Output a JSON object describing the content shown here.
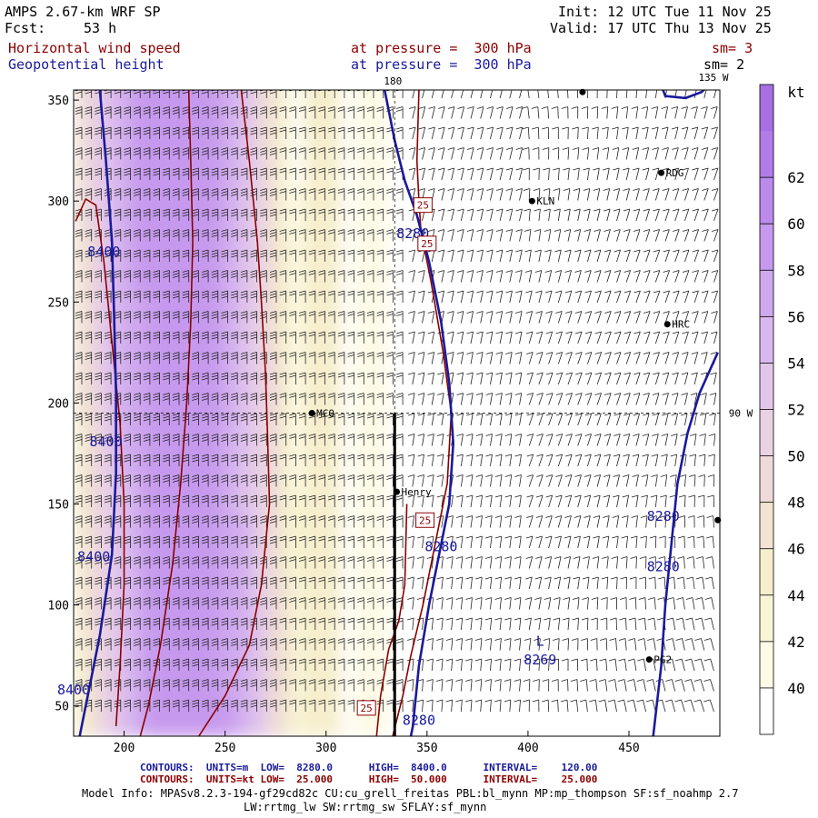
{
  "header": {
    "model": "AMPS 2.67-km WRF SP",
    "fcst_label": "Fcst:",
    "fcst_value": "53 h",
    "init": "Init: 12 UTC Tue 11 Nov 25",
    "valid": "Valid: 17 UTC Thu 13 Nov 25",
    "field1": "Horizontal wind speed",
    "field2": "Geopotential height",
    "level1": "at pressure =  300 hPa",
    "level2": "at pressure =  300 hPa",
    "sm1": "sm= 3",
    "sm2": "sm= 2"
  },
  "colors": {
    "wind_contour": "#8b0000",
    "height_contour": "#1a1a9c",
    "barb": "#222222"
  },
  "chart_data": {
    "type": "contour-map",
    "title": "Horizontal wind speed / Geopotential height at 300 hPa",
    "x_range": [
      175,
      495
    ],
    "y_range": [
      35,
      355
    ],
    "x_ticks": [
      200,
      250,
      300,
      350,
      400,
      450
    ],
    "y_ticks": [
      50,
      100,
      150,
      200,
      250,
      300,
      350
    ],
    "meridian_labels": [
      "180",
      "135 W",
      "90 W"
    ],
    "colorbar": {
      "unit": "kt",
      "ticks": [
        40,
        42,
        44,
        46,
        48,
        50,
        52,
        54,
        56,
        58,
        60,
        62
      ],
      "bands": [
        {
          "lo": 38,
          "hi": 40,
          "color": "#ffffff"
        },
        {
          "lo": 40,
          "hi": 42,
          "color": "#fdfbe6"
        },
        {
          "lo": 42,
          "hi": 44,
          "color": "#faf5d6"
        },
        {
          "lo": 44,
          "hi": 46,
          "color": "#f6eecc"
        },
        {
          "lo": 46,
          "hi": 48,
          "color": "#f2e3d2"
        },
        {
          "lo": 48,
          "hi": 50,
          "color": "#eedad8"
        },
        {
          "lo": 50,
          "hi": 52,
          "color": "#e9d2e3"
        },
        {
          "lo": 52,
          "hi": 54,
          "color": "#e2c6ea"
        },
        {
          "lo": 54,
          "hi": 56,
          "color": "#d9b8ee"
        },
        {
          "lo": 56,
          "hi": 58,
          "color": "#cfa9ef"
        },
        {
          "lo": 58,
          "hi": 60,
          "color": "#c699ee"
        },
        {
          "lo": 60,
          "hi": 62,
          "color": "#bc8aec"
        },
        {
          "lo": 62,
          "hi": 64,
          "color": "#b27ce8"
        },
        {
          "lo": 64,
          "hi": 66,
          "color": "#a86fe2"
        }
      ]
    },
    "stations": [
      {
        "name": "KLN",
        "x": 402,
        "y": 300
      },
      {
        "name": "RDG",
        "x": 466,
        "y": 314
      },
      {
        "name": "HRC",
        "x": 469,
        "y": 239
      },
      {
        "name": "MCO",
        "x": 293,
        "y": 195
      },
      {
        "name": "Henry",
        "x": 335,
        "y": 156
      },
      {
        "name": "PG2",
        "x": 460,
        "y": 73
      },
      {
        "name": "",
        "x": 494,
        "y": 142
      },
      {
        "name": "",
        "x": 427,
        "y": 354
      }
    ],
    "height_labels": [
      {
        "text": "8400",
        "x": 190,
        "y": 274
      },
      {
        "text": "8400",
        "x": 191,
        "y": 180
      },
      {
        "text": "8400",
        "x": 185,
        "y": 123
      },
      {
        "text": "8400",
        "x": 175,
        "y": 57
      },
      {
        "text": "8280",
        "x": 343,
        "y": 283
      },
      {
        "text": "8280",
        "x": 357,
        "y": 128
      },
      {
        "text": "8280",
        "x": 346,
        "y": 42
      },
      {
        "text": "8280",
        "x": 467,
        "y": 143
      },
      {
        "text": "8280",
        "x": 467,
        "y": 118
      },
      {
        "text": "8269",
        "x": 406,
        "y": 72
      }
    ],
    "low_center": {
      "text": "L",
      "x": 406,
      "y": 82
    },
    "wind_labels": [
      {
        "text": "25",
        "x": 348,
        "y": 298
      },
      {
        "text": "25",
        "x": 350,
        "y": 279
      },
      {
        "text": "25",
        "x": 349,
        "y": 142
      },
      {
        "text": "25",
        "x": 320,
        "y": 49
      }
    ]
  },
  "footer": {
    "line1_label": "CONTOURS:",
    "line1_units": "UNITS=m",
    "line1_low": "LOW=  8280.0",
    "line1_high": "HIGH=  8400.0",
    "line1_interval": "INTERVAL=    120.00",
    "line2_label": "CONTOURS:",
    "line2_units": "UNITS=kt",
    "line2_low": "LOW=  25.000",
    "line2_high": "HIGH=  50.000",
    "line2_interval": "INTERVAL=    25.000",
    "model_info_1": "Model Info: MPASv8.2.3-194-gf29cd82c CU:cu_grell_freitas PBL:bl_mynn MP:mp_thompson SF:sf_noahmp 2.7",
    "model_info_2": "LW:rrtmg_lw SW:rrtmg_sw SFLAY:sf_mynn"
  }
}
